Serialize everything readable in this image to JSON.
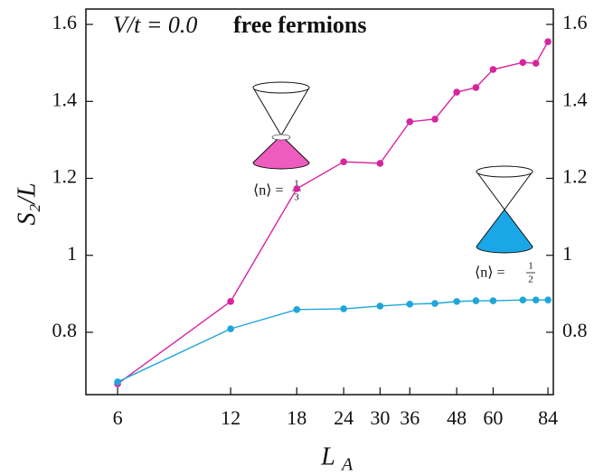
{
  "chart_data": {
    "type": "line",
    "title_math": "V/t = 0.0",
    "title_bold": "free fermions",
    "ylabel": "S₂/L",
    "xlabel": "L",
    "xlabel_sub": "A",
    "x": [
      6,
      12,
      18,
      24,
      30,
      36,
      42,
      48,
      54,
      60,
      72,
      78,
      84
    ],
    "series": [
      {
        "color": "#d6259e",
        "values": [
          0.666,
          0.88,
          1.173,
          1.243,
          1.239,
          1.347,
          1.354,
          1.424,
          1.436,
          1.483,
          1.501,
          1.499,
          1.555
        ]
      },
      {
        "color": "#1fa6d9",
        "values": [
          0.671,
          0.809,
          0.859,
          0.861,
          0.868,
          0.873,
          0.875,
          0.88,
          0.882,
          0.882,
          0.884,
          0.884,
          0.884
        ]
      }
    ],
    "xlim": [
      4.94,
      86.8
    ],
    "xticks": [
      6,
      12,
      18,
      24,
      30,
      36,
      48,
      60,
      84
    ],
    "xscale": "log",
    "ylim": [
      0.638,
      1.64
    ],
    "yticks": [
      0.8,
      1.0,
      1.2,
      1.4,
      1.6
    ],
    "right_axis": true,
    "annotations": [
      {
        "label": "⟨n⟩ =",
        "num": "1",
        "den": "3",
        "color": "#ee5cbf"
      },
      {
        "label": "⟨n⟩ =",
        "num": "1",
        "den": "2",
        "color": "#1aa7e8"
      }
    ]
  }
}
